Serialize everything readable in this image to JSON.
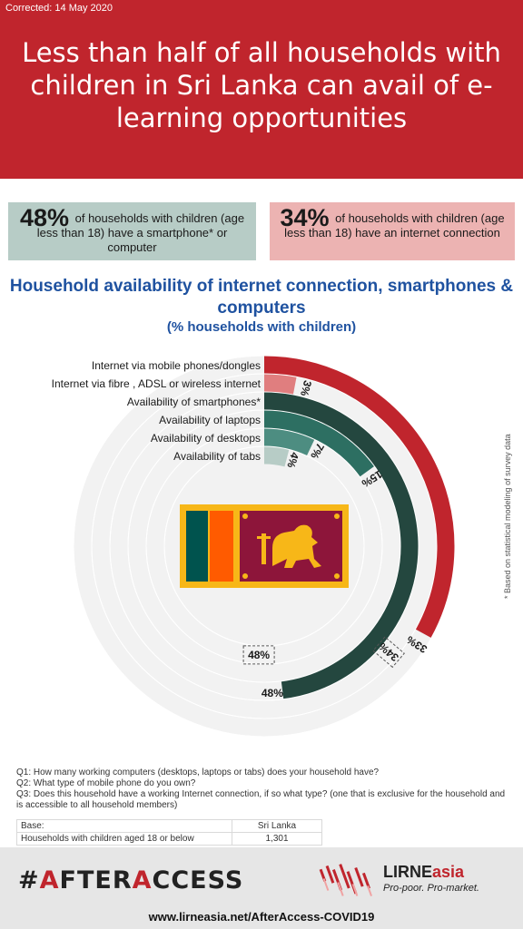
{
  "header": {
    "corrected": "Corrected: 14 May 2020",
    "title": "Less than half of all households with children in Sri Lanka can avail of e-learning opportunities"
  },
  "stats": [
    {
      "value": "48%",
      "text": "of households with children (age less than 18) have a smartphone* or computer"
    },
    {
      "value": "34%",
      "text": "of households with children (age less than 18) have an internet connection"
    }
  ],
  "colors": {
    "header_red": "#c0252d",
    "internet_mobile": "#c0252d",
    "internet_fixed": "#e07e7f",
    "smartphones": "#24473f",
    "laptops": "#2d6f62",
    "desktops": "#4d8d81",
    "tabs": "#b7ccc6",
    "track": "#f2f2f2",
    "title_blue": "#1f52a0"
  },
  "chart_data": {
    "type": "radial-bar",
    "title": "Household availability of internet connection, smartphones & computers",
    "subtitle": "(% households with children)",
    "max": 100,
    "series": [
      {
        "name": "Internet via mobile phones/dongles",
        "value": 33,
        "label": "33%",
        "color": "#c0252d"
      },
      {
        "name": "Internet via fibre , ADSL or wireless internet",
        "value": 3,
        "label": "3%",
        "color": "#e07e7f"
      },
      {
        "name": "Availability of smartphones*",
        "value": 48,
        "label": "48%",
        "color": "#24473f"
      },
      {
        "name": "Availability of laptops",
        "value": 15,
        "label": "15%",
        "color": "#2d6f62"
      },
      {
        "name": "Availability of desktops",
        "value": 7,
        "label": "7%",
        "color": "#4d8d81"
      },
      {
        "name": "Availability of tabs",
        "value": 4,
        "label": "4%",
        "color": "#b7ccc6"
      }
    ],
    "group_annotations": [
      {
        "label": "34%",
        "value": 34,
        "note": "internet connection (combined)"
      },
      {
        "label": "48%",
        "value": 48,
        "note": "smartphone or computer (combined)"
      }
    ]
  },
  "side_note": "* Based on statistical modeling of survey data",
  "questions": [
    "Q1: How many working computers (desktops, laptops or tabs) does your household have?",
    "Q2: What type of mobile phone do you own?",
    "Q3: Does this household have a working Internet connection, if so what type? (one that is exclusive for the household and is accessible to all household members)"
  ],
  "base_table": {
    "header": [
      "Base:",
      "Sri Lanka"
    ],
    "row": [
      "Households with children aged 18 or below",
      "1,301"
    ]
  },
  "footer": {
    "afteraccess_hash": "#",
    "afteraccess_a1": "A",
    "afteraccess_mid": "FTER",
    "afteraccess_a2": "A",
    "afteraccess_end": "CCESS",
    "lirne_name_1": "LIRNE",
    "lirne_name_2": "asia",
    "lirne_tag": "Pro-poor. Pro-market.",
    "url": "www.lirneasia.net/AfterAccess-COVID19"
  }
}
